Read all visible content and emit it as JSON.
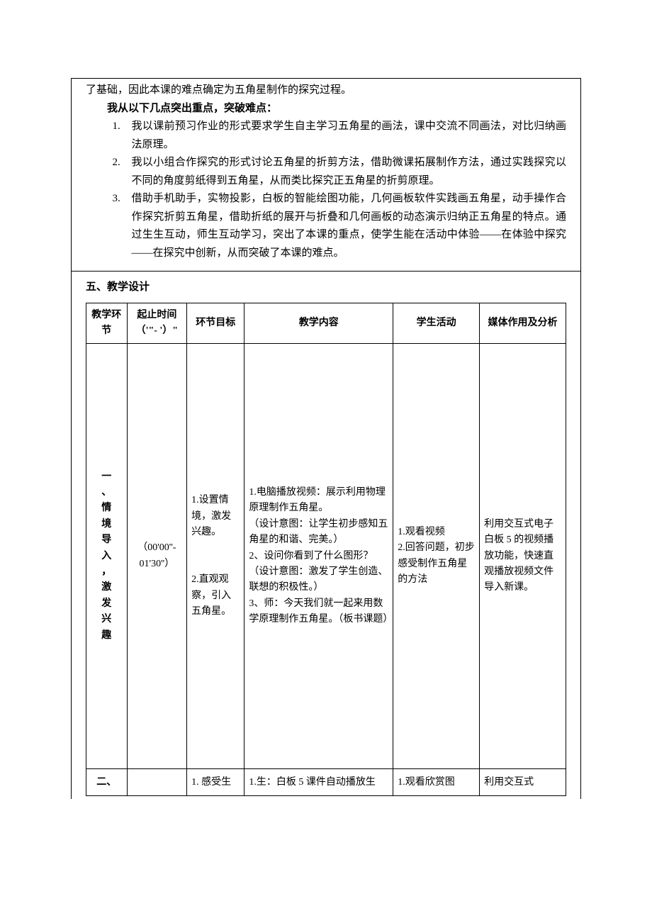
{
  "intro_tail": "了基础，因此本课的难点确定为五角星制作的探究过程。",
  "key_heading": "我从以下几点突出重点，突破难点：",
  "points": [
    {
      "num": "1.",
      "text": "我以课前预习作业的形式要求学生自主学习五角星的画法，课中交流不同画法，对比归纳画法原理。"
    },
    {
      "num": "2.",
      "text": "我以小组合作探究的形式讨论五角星的折剪方法，借助微课拓展制作方法，通过实践探究以不同的角度剪纸得到五角星，从而类比探究正五角星的折剪原理。"
    },
    {
      "num": "3.",
      "text": "借助手机助手，实物投影，白板的智能绘图功能，几何画板软件实践画五角星，动手操作合作探究折剪五角星，借助折纸的展开与折叠和几何画板的动态演示归纳正五角星的特点。通过生生互动，师生互动学习，突出了本课的重点，使学生能在活动中体验——在体验中探究——在探究中创新，从而突破了本课的难点。"
    }
  ],
  "section5_title": "五、教学设计",
  "headers": {
    "c1": "教学环节",
    "c2_a": "起止时间",
    "c2_b": "（'\"- '）\"",
    "c3": "环节目标",
    "c4": "教学内容",
    "c5": "学生活动",
    "c6": "媒体作用及分析"
  },
  "row1": {
    "stage": "一、情境导入，激发兴趣",
    "time": "（00'00''- 01'30''）",
    "goal": "1.设置情境，激发兴趣。\n\n2.直观观察，引入五角星。",
    "content": "1.电脑播放视频：展示利用物理原理制作五角星。\n（设计意图：让学生初步感知五角星的和谐、完美。）\n2、设问你看到了什么图形？（设计意图：激发了学生创造、联想的积极性。）\n3、师：今天我们就一起来用数学原理制作五角星。（板书课题）",
    "activity": "1.观看视频\n2.回答问题，初步感受制作五角星的方法",
    "media": "利用交互式电子白板 5 的视频播放功能，快速直观播放视频文件导入新课。"
  },
  "row2": {
    "stage": "二、",
    "time": "",
    "goal": "1. 感受生",
    "content": "1.生：白板 5 课件自动播放生",
    "activity": "1.观看欣赏图",
    "media": "利用交互式"
  }
}
